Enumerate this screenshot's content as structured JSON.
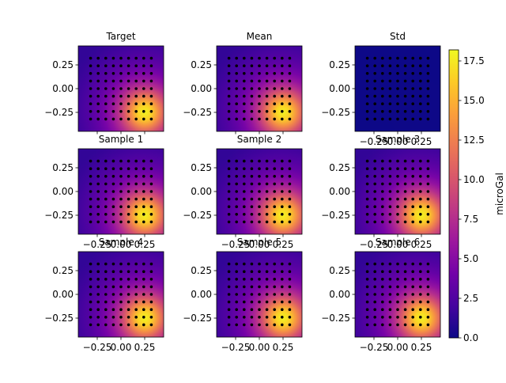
{
  "figure": {
    "colorbar": {
      "label": "microGal",
      "ticks": [
        "0.0",
        "2.5",
        "5.0",
        "7.5",
        "10.0",
        "12.5",
        "15.0",
        "17.5"
      ],
      "tick_values": [
        0,
        2.5,
        5,
        7.5,
        10,
        12.5,
        15,
        17.5
      ],
      "range": [
        0,
        18.2
      ],
      "colormap": "plasma"
    }
  },
  "chart_data": [
    {
      "type": "heatmap",
      "title": "Target",
      "peak": 18,
      "xlim": [
        -0.45,
        0.45
      ],
      "ylim": [
        -0.45,
        0.45
      ],
      "xticks": [],
      "yticks": [
        "0.25",
        "0.00",
        "−0.25"
      ]
    },
    {
      "type": "heatmap",
      "title": "Mean",
      "peak": 18,
      "xlim": [
        -0.45,
        0.45
      ],
      "ylim": [
        -0.45,
        0.45
      ],
      "xticks": [],
      "yticks": [
        "0.25",
        "0.00",
        "−0.25"
      ]
    },
    {
      "type": "heatmap",
      "title": "Std",
      "peak": 0.05,
      "xlim": [
        -0.45,
        0.45
      ],
      "ylim": [
        -0.45,
        0.45
      ],
      "xticks": [
        "−0.25",
        "0.00",
        "0.25"
      ],
      "yticks": [
        "0.25",
        "0.00",
        "−0.25"
      ]
    },
    {
      "type": "heatmap",
      "title": "Sample 1",
      "peak": 18,
      "xlim": [
        -0.45,
        0.45
      ],
      "ylim": [
        -0.45,
        0.45
      ],
      "xticks": [
        "−0.25",
        "0.00",
        "0.25"
      ],
      "yticks": [
        "0.25",
        "0.00",
        "−0.25"
      ]
    },
    {
      "type": "heatmap",
      "title": "Sample 2",
      "peak": 18,
      "xlim": [
        -0.45,
        0.45
      ],
      "ylim": [
        -0.45,
        0.45
      ],
      "xticks": [
        "−0.25",
        "0.00",
        "0.25"
      ],
      "yticks": [
        "0.25",
        "0.00",
        "−0.25"
      ]
    },
    {
      "type": "heatmap",
      "title": "Sample 3",
      "peak": 18,
      "xlim": [
        -0.45,
        0.45
      ],
      "ylim": [
        -0.45,
        0.45
      ],
      "xticks": [
        "−0.25",
        "0.00",
        "0.25"
      ],
      "yticks": [
        "0.25",
        "0.00",
        "−0.25"
      ]
    },
    {
      "type": "heatmap",
      "title": "Sample 4",
      "peak": 18,
      "xlim": [
        -0.45,
        0.45
      ],
      "ylim": [
        -0.45,
        0.45
      ],
      "xticks": [
        "−0.25",
        "0.00",
        "0.25"
      ],
      "yticks": [
        "0.25",
        "0.00",
        "−0.25"
      ]
    },
    {
      "type": "heatmap",
      "title": "Sample 5",
      "peak": 18,
      "xlim": [
        -0.45,
        0.45
      ],
      "ylim": [
        -0.45,
        0.45
      ],
      "xticks": [
        "−0.25",
        "0.00",
        "0.25"
      ],
      "yticks": [
        "0.25",
        "0.00",
        "−0.25"
      ]
    },
    {
      "type": "heatmap",
      "title": "Sample 6",
      "peak": 18,
      "xlim": [
        -0.45,
        0.45
      ],
      "ylim": [
        -0.45,
        0.45
      ],
      "xticks": [
        "−0.25",
        "0.00",
        "0.25"
      ],
      "yticks": [
        "0.25",
        "0.00",
        "−0.25"
      ]
    }
  ],
  "stations": {
    "x": [
      -0.32,
      -0.24,
      -0.16,
      -0.08,
      0.0,
      0.08,
      0.16,
      0.24,
      0.32
    ],
    "y": [
      0.32,
      0.24,
      0.16,
      0.08,
      0.0,
      -0.08,
      -0.16,
      -0.24,
      -0.32
    ]
  },
  "anomaly_center": {
    "x": 0.25,
    "y": -0.25
  }
}
